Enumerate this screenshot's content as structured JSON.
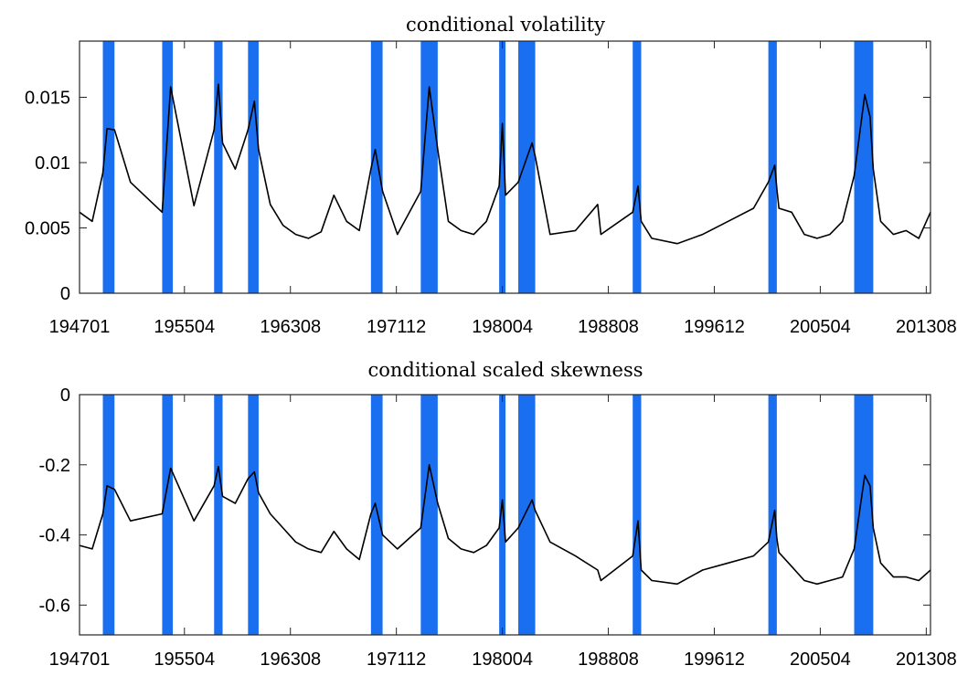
{
  "recession_color": "#1a6ff0",
  "line_color": "#000000",
  "recessions": [
    [
      194811,
      194910
    ],
    [
      195307,
      195405
    ],
    [
      195708,
      195804
    ],
    [
      196004,
      196102
    ],
    [
      196912,
      197011
    ],
    [
      197311,
      197503
    ],
    [
      198001,
      198007
    ],
    [
      198107,
      198211
    ],
    [
      199007,
      199103
    ],
    [
      200103,
      200111
    ],
    [
      200712,
      200906
    ]
  ],
  "chart_data": [
    {
      "type": "line",
      "title": "conditional volatility",
      "x_start": 194701,
      "x_end": 201312,
      "xticks": [
        "194701",
        "195504",
        "196308",
        "197112",
        "198004",
        "198808",
        "199612",
        "200504",
        "201308"
      ],
      "yticks": [
        "0",
        "0.005",
        "0.01",
        "0.015"
      ],
      "ylim": [
        0,
        0.0193
      ],
      "series": [
        {
          "x": [
            194701,
            194801,
            194811,
            194903,
            194910,
            195101,
            195307,
            195403,
            195601,
            195708,
            195712,
            195804,
            195904,
            196004,
            196010,
            196102,
            196201,
            196301,
            196401,
            196501,
            196601,
            196701,
            196801,
            196901,
            196912,
            197004,
            197011,
            197201,
            197311,
            197407,
            197503,
            197601,
            197701,
            197801,
            197901,
            198001,
            198004,
            198007,
            198107,
            198208,
            198211,
            198401,
            198601,
            198710,
            198801,
            199007,
            199012,
            199103,
            199201,
            199401,
            199601,
            199801,
            200001,
            200103,
            200109,
            200111,
            200201,
            200301,
            200401,
            200501,
            200601,
            200701,
            200712,
            200810,
            200903,
            200906,
            201001,
            201101,
            201201,
            201301,
            201312
          ],
          "values": [
            0.0062,
            0.0055,
            0.0092,
            0.0126,
            0.0125,
            0.0085,
            0.0062,
            0.0158,
            0.0067,
            0.0125,
            0.016,
            0.0115,
            0.0095,
            0.0125,
            0.0147,
            0.011,
            0.0068,
            0.0052,
            0.0045,
            0.0042,
            0.0047,
            0.0075,
            0.0055,
            0.0048,
            0.0095,
            0.011,
            0.0078,
            0.0045,
            0.0078,
            0.0158,
            0.011,
            0.0055,
            0.0048,
            0.0045,
            0.0055,
            0.0082,
            0.013,
            0.0075,
            0.0085,
            0.0115,
            0.0105,
            0.0045,
            0.0048,
            0.0068,
            0.0045,
            0.0062,
            0.0082,
            0.0055,
            0.0042,
            0.0038,
            0.0045,
            0.0055,
            0.0065,
            0.0085,
            0.0098,
            0.008,
            0.0065,
            0.0062,
            0.0045,
            0.0042,
            0.0045,
            0.0055,
            0.009,
            0.0152,
            0.0135,
            0.0095,
            0.0055,
            0.0045,
            0.0048,
            0.0042,
            0.0062
          ]
        }
      ]
    },
    {
      "type": "line",
      "title": "conditional scaled skewness",
      "x_start": 194701,
      "x_end": 201312,
      "xticks": [
        "194701",
        "195504",
        "196308",
        "197112",
        "198004",
        "198808",
        "199612",
        "200504",
        "201308"
      ],
      "yticks": [
        "0",
        "-0.2",
        "-0.4",
        "-0.6"
      ],
      "ylim": [
        -0.685,
        0
      ],
      "series": [
        {
          "x": [
            194701,
            194801,
            194811,
            194903,
            194910,
            195101,
            195307,
            195403,
            195601,
            195708,
            195712,
            195804,
            195904,
            196004,
            196010,
            196102,
            196201,
            196301,
            196401,
            196501,
            196601,
            196701,
            196801,
            196901,
            196912,
            197004,
            197011,
            197201,
            197311,
            197407,
            197503,
            197601,
            197701,
            197801,
            197901,
            198001,
            198004,
            198007,
            198107,
            198208,
            198211,
            198401,
            198601,
            198710,
            198801,
            199007,
            199012,
            199103,
            199201,
            199401,
            199601,
            199801,
            200001,
            200103,
            200109,
            200111,
            200201,
            200301,
            200401,
            200501,
            200601,
            200701,
            200712,
            200810,
            200903,
            200906,
            201001,
            201101,
            201201,
            201301,
            201312
          ],
          "values": [
            -0.43,
            -0.44,
            -0.34,
            -0.26,
            -0.27,
            -0.36,
            -0.34,
            -0.21,
            -0.36,
            -0.26,
            -0.205,
            -0.29,
            -0.31,
            -0.24,
            -0.22,
            -0.28,
            -0.34,
            -0.38,
            -0.42,
            -0.44,
            -0.45,
            -0.39,
            -0.44,
            -0.47,
            -0.34,
            -0.31,
            -0.4,
            -0.44,
            -0.38,
            -0.2,
            -0.31,
            -0.41,
            -0.44,
            -0.45,
            -0.43,
            -0.38,
            -0.3,
            -0.42,
            -0.38,
            -0.3,
            -0.33,
            -0.42,
            -0.46,
            -0.5,
            -0.53,
            -0.46,
            -0.36,
            -0.5,
            -0.53,
            -0.54,
            -0.5,
            -0.48,
            -0.46,
            -0.42,
            -0.33,
            -0.41,
            -0.45,
            -0.49,
            -0.53,
            -0.54,
            -0.53,
            -0.52,
            -0.44,
            -0.23,
            -0.26,
            -0.38,
            -0.48,
            -0.52,
            -0.52,
            -0.53,
            -0.5
          ]
        }
      ]
    }
  ]
}
